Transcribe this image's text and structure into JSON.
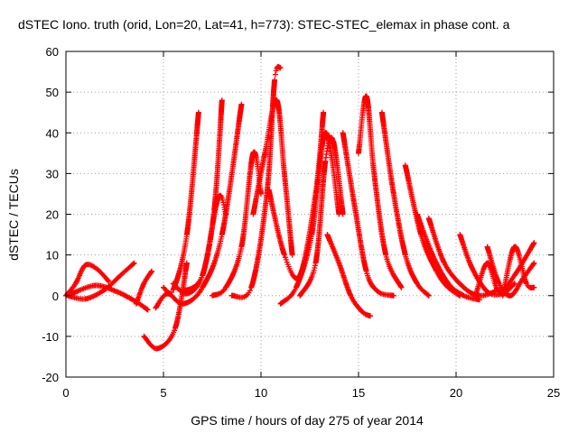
{
  "chart_data": {
    "type": "scatter",
    "title": "dSTEC Iono. truth (orid, Lon=20, Lat=41, h=773): STEC-STEC_elemax in phase cont. a",
    "xlabel": "GPS time / hours of day 275 of year 2014",
    "ylabel": "dSTEC  / TECUs",
    "xlim": [
      0,
      25
    ],
    "ylim": [
      -20,
      60
    ],
    "xticks": [
      0,
      5,
      10,
      15,
      20,
      25
    ],
    "yticks": [
      -20,
      -10,
      0,
      10,
      20,
      30,
      40,
      50,
      60
    ],
    "grid": true,
    "marker": "plus",
    "color": "#ff0000",
    "series": [
      {
        "x": [
          0.0,
          0.5,
          1.0,
          1.6,
          2.2
        ],
        "y": [
          0.0,
          3.0,
          7.5,
          6.5,
          3.5
        ]
      },
      {
        "x": [
          0.1,
          1.0,
          2.0,
          2.8,
          3.5
        ],
        "y": [
          0.0,
          -0.8,
          1.5,
          5.0,
          8.0
        ]
      },
      {
        "x": [
          0.3,
          1.5,
          2.6,
          3.6,
          4.2
        ],
        "y": [
          0.5,
          2.5,
          1.0,
          -1.5,
          -3.5
        ]
      },
      {
        "x": [
          3.6,
          4.0,
          4.4
        ],
        "y": [
          -2.0,
          3.0,
          6.0
        ]
      },
      {
        "x": [
          4.0,
          4.7,
          5.6,
          6.2
        ],
        "y": [
          -10.0,
          -13.0,
          -8.0,
          8.0
        ]
      },
      {
        "x": [
          4.6,
          5.2,
          6.0,
          7.0,
          8.0,
          9.0
        ],
        "y": [
          -3.0,
          0.5,
          -2.0,
          2.0,
          15.0,
          47.0
        ]
      },
      {
        "x": [
          5.0,
          5.5,
          6.2,
          6.8
        ],
        "y": [
          2.0,
          1.5,
          15.0,
          45.0
        ]
      },
      {
        "x": [
          5.5,
          6.2,
          7.0,
          7.6,
          8.0
        ],
        "y": [
          3.0,
          0.5,
          5.0,
          21.0,
          48.0
        ]
      },
      {
        "x": [
          6.0,
          7.0,
          7.8,
          8.2
        ],
        "y": [
          1.0,
          5.0,
          24.0,
          20.0
        ]
      },
      {
        "x": [
          7.5,
          8.2,
          9.0,
          9.6,
          10.0
        ],
        "y": [
          0.0,
          2.0,
          12.0,
          35.0,
          25.0
        ]
      },
      {
        "x": [
          8.5,
          9.5,
          10.3,
          10.7,
          11.0
        ],
        "y": [
          0.0,
          2.0,
          25.0,
          53.0,
          56.0
        ]
      },
      {
        "x": [
          9.6,
          10.2,
          10.8,
          11.2,
          11.6
        ],
        "y": [
          20.0,
          35.0,
          48.0,
          30.0,
          10.0
        ]
      },
      {
        "x": [
          10.4,
          11.2,
          12.0,
          12.8,
          13.2
        ],
        "y": [
          26.0,
          10.0,
          5.0,
          25.0,
          45.0
        ]
      },
      {
        "x": [
          11.0,
          11.8,
          12.6,
          13.3,
          14.0
        ],
        "y": [
          -2.0,
          2.0,
          15.0,
          40.0,
          20.0
        ]
      },
      {
        "x": [
          12.0,
          12.8,
          13.3,
          13.7,
          14.2
        ],
        "y": [
          0.0,
          8.0,
          33.0,
          38.0,
          20.0
        ]
      },
      {
        "x": [
          13.4,
          14.0,
          14.6,
          15.2,
          15.6
        ],
        "y": [
          15.0,
          8.0,
          0.0,
          -4.0,
          -5.0
        ]
      },
      {
        "x": [
          14.2,
          14.8,
          15.4,
          16.0,
          16.8
        ],
        "y": [
          40.0,
          22.0,
          6.0,
          1.0,
          0.0
        ]
      },
      {
        "x": [
          15.0,
          15.4,
          15.8,
          16.4,
          17.2
        ],
        "y": [
          35.0,
          49.0,
          30.0,
          10.0,
          2.0
        ]
      },
      {
        "x": [
          16.2,
          16.8,
          17.4,
          18.0,
          18.6
        ],
        "y": [
          45.0,
          25.0,
          10.0,
          3.0,
          0.0
        ]
      },
      {
        "x": [
          17.4,
          18.2,
          19.0,
          19.6,
          20.2
        ],
        "y": [
          32.0,
          15.0,
          6.0,
          2.0,
          0.0
        ]
      },
      {
        "x": [
          18.0,
          18.8,
          19.6,
          20.4,
          21.2
        ],
        "y": [
          20.0,
          10.0,
          3.0,
          0.0,
          -1.0
        ]
      },
      {
        "x": [
          18.6,
          19.4,
          20.4,
          21.2,
          22.0
        ],
        "y": [
          19.0,
          8.0,
          2.0,
          0.0,
          1.0
        ]
      },
      {
        "x": [
          20.2,
          20.8,
          21.6,
          22.4,
          23.0
        ],
        "y": [
          15.0,
          7.0,
          1.0,
          0.5,
          3.0
        ]
      },
      {
        "x": [
          21.0,
          21.6,
          22.2,
          23.0,
          24.0
        ],
        "y": [
          0.0,
          8.0,
          1.0,
          5.0,
          13.0
        ]
      },
      {
        "x": [
          21.6,
          22.2,
          22.8,
          23.4,
          24.0
        ],
        "y": [
          12.0,
          3.0,
          0.0,
          4.0,
          8.0
        ]
      },
      {
        "x": [
          22.4,
          23.0,
          23.6,
          24.0
        ],
        "y": [
          0.0,
          12.0,
          3.0,
          2.0
        ]
      }
    ]
  }
}
